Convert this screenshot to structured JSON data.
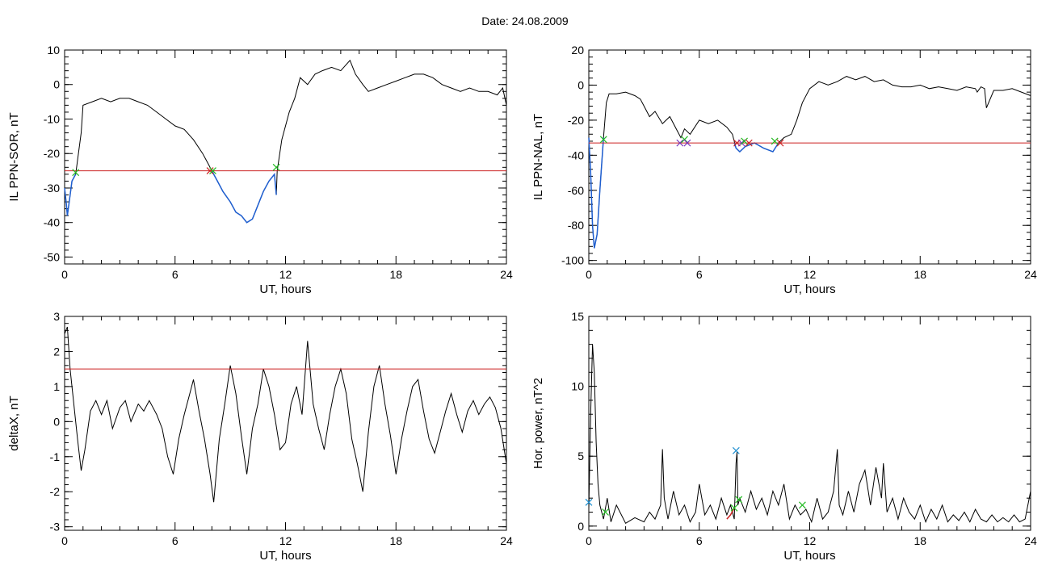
{
  "page_title": "Date:  24.08.2009",
  "chart_data": [
    {
      "type": "line",
      "xlabel": "UT, hours",
      "ylabel": "IL PPN-SOR, nT",
      "xlim": [
        0,
        24
      ],
      "ylim": [
        -52,
        10
      ],
      "xticks": [
        0,
        6,
        12,
        18,
        24
      ],
      "yticks": [
        10,
        0,
        -10,
        -20,
        -30,
        -40,
        -50
      ],
      "threshold": -25,
      "series": [
        {
          "role": "main",
          "color": "#000000",
          "x": [
            0,
            0.1,
            0.15,
            0.25,
            0.4,
            0.6,
            0.75,
            0.9,
            1.0,
            1.5,
            2.0,
            2.5,
            3.0,
            3.5,
            4.0,
            4.5,
            5.0,
            5.5,
            6.0,
            6.5,
            7.0,
            7.5,
            7.8,
            8.0,
            8.3,
            8.6,
            9.0,
            9.3,
            9.6,
            9.9,
            10.2,
            10.5,
            10.8,
            11.1,
            11.4,
            11.5,
            11.55,
            11.8,
            12.2,
            12.5,
            12.8,
            13.2,
            13.6,
            14.0,
            14.5,
            15.0,
            15.5,
            15.8,
            16.2,
            16.5,
            17.0,
            17.5,
            18.0,
            18.5,
            19.0,
            19.5,
            20.0,
            20.5,
            21.0,
            21.5,
            22.0,
            22.5,
            23.0,
            23.5,
            23.8,
            24.0
          ],
          "y": [
            -30,
            -35,
            -38,
            -34,
            -28,
            -26,
            -20,
            -14,
            -6,
            -5,
            -4,
            -5,
            -4,
            -4,
            -5,
            -6,
            -8,
            -10,
            -12,
            -13,
            -16,
            -20,
            -23,
            -25,
            -28,
            -31,
            -34,
            -37,
            -38,
            -40,
            -39,
            -35,
            -31,
            -28,
            -26,
            -32,
            -25,
            -16,
            -8,
            -4,
            2,
            0,
            3,
            4,
            5,
            4,
            7,
            3,
            0,
            -2,
            -1,
            0,
            1,
            2,
            3,
            3,
            2,
            0,
            -1,
            -2,
            -1,
            -2,
            -2,
            -3,
            -1,
            -6
          ]
        },
        {
          "role": "below-threshold",
          "color": "#1f5fd0",
          "x": [
            0,
            0.1,
            0.15,
            0.25,
            0.4,
            0.6
          ],
          "y": [
            -30,
            -35,
            -38,
            -34,
            -28,
            -26
          ]
        },
        {
          "role": "below-threshold",
          "color": "#1f5fd0",
          "x": [
            8.0,
            8.3,
            8.6,
            9.0,
            9.3,
            9.6,
            9.9,
            10.2,
            10.5,
            10.8,
            11.1,
            11.4,
            11.5
          ],
          "y": [
            -25,
            -28,
            -31,
            -34,
            -37,
            -38,
            -40,
            -39,
            -35,
            -31,
            -28,
            -26,
            -32
          ]
        }
      ],
      "markers": [
        {
          "symbol": "x",
          "color": "#22bb22",
          "x": 0.6,
          "y": -25.5
        },
        {
          "symbol": "x",
          "color": "#cc2222",
          "x": 7.9,
          "y": -25
        },
        {
          "symbol": "x",
          "color": "#22bb22",
          "x": 8.05,
          "y": -25
        },
        {
          "symbol": "x",
          "color": "#22bb22",
          "x": 11.5,
          "y": -24
        }
      ]
    },
    {
      "type": "line",
      "xlabel": "UT, hours",
      "ylabel": "IL PPN-NAL, nT",
      "xlim": [
        0,
        24
      ],
      "ylim": [
        -102,
        20
      ],
      "xticks": [
        0,
        6,
        12,
        18,
        24
      ],
      "yticks": [
        20,
        0,
        -20,
        -40,
        -60,
        -80,
        -100
      ],
      "threshold": -33,
      "series": [
        {
          "role": "main",
          "color": "#000000",
          "x": [
            0,
            0.1,
            0.2,
            0.3,
            0.45,
            0.6,
            0.8,
            0.95,
            1.1,
            1.5,
            2.0,
            2.5,
            2.8,
            3.0,
            3.3,
            3.6,
            4.0,
            4.4,
            4.8,
            5.0,
            5.2,
            5.5,
            6.0,
            6.5,
            7.0,
            7.5,
            7.8,
            8.0,
            8.2,
            8.5,
            9.0,
            9.5,
            10.0,
            10.3,
            10.6,
            11.0,
            11.3,
            11.6,
            12.0,
            12.5,
            13.0,
            13.5,
            14.0,
            14.5,
            15.0,
            15.5,
            16.0,
            16.5,
            17.0,
            17.5,
            18.0,
            18.5,
            19.0,
            19.5,
            20.0,
            20.5,
            21.0,
            21.1,
            21.3,
            21.5,
            21.6,
            22.0,
            22.5,
            23.0,
            23.5,
            24.0
          ],
          "y": [
            -30,
            -50,
            -80,
            -93,
            -85,
            -60,
            -30,
            -10,
            -5,
            -5,
            -4,
            -6,
            -8,
            -12,
            -18,
            -15,
            -22,
            -18,
            -26,
            -30,
            -25,
            -28,
            -20,
            -22,
            -20,
            -24,
            -28,
            -36,
            -38,
            -35,
            -33,
            -36,
            -38,
            -33,
            -30,
            -28,
            -20,
            -10,
            -2,
            2,
            0,
            2,
            5,
            3,
            5,
            2,
            3,
            0,
            -1,
            -1,
            0,
            -2,
            -1,
            -2,
            -3,
            -1,
            -2,
            -4,
            -1,
            -2,
            -13,
            -3,
            -3,
            -2,
            -4,
            -6
          ]
        },
        {
          "role": "below-threshold",
          "color": "#1f5fd0",
          "x": [
            0,
            0.1,
            0.2,
            0.3,
            0.45,
            0.6,
            0.8
          ],
          "y": [
            -30,
            -50,
            -80,
            -93,
            -85,
            -60,
            -30
          ]
        },
        {
          "role": "below-threshold",
          "color": "#1f5fd0",
          "x": [
            7.9,
            8.0,
            8.2,
            8.5,
            9.0,
            9.5,
            10.0,
            10.3
          ],
          "y": [
            -33,
            -36,
            -38,
            -35,
            -33,
            -36,
            -38,
            -33
          ]
        }
      ],
      "markers": [
        {
          "symbol": "x",
          "color": "#22bb22",
          "x": 0.8,
          "y": -31
        },
        {
          "symbol": "x",
          "color": "#7733bb",
          "x": 4.95,
          "y": -33
        },
        {
          "symbol": "x",
          "color": "#22bb22",
          "x": 5.2,
          "y": -31
        },
        {
          "symbol": "x",
          "color": "#7733bb",
          "x": 5.35,
          "y": -33
        },
        {
          "symbol": "x",
          "color": "#cc2222",
          "x": 8.05,
          "y": -33
        },
        {
          "symbol": "x",
          "color": "#7733bb",
          "x": 8.3,
          "y": -33
        },
        {
          "symbol": "x",
          "color": "#22bb22",
          "x": 8.45,
          "y": -32
        },
        {
          "symbol": "x",
          "color": "#cc2222",
          "x": 8.7,
          "y": -33
        },
        {
          "symbol": "x",
          "color": "#22bb22",
          "x": 10.1,
          "y": -32
        },
        {
          "symbol": "x",
          "color": "#cc2222",
          "x": 10.4,
          "y": -33
        }
      ]
    },
    {
      "type": "line",
      "xlabel": "UT, hours",
      "ylabel": "deltaX, nT",
      "xlim": [
        0,
        24
      ],
      "ylim": [
        -3.1,
        3
      ],
      "xticks": [
        0,
        6,
        12,
        18,
        24
      ],
      "yticks": [
        3,
        2,
        1,
        0,
        -1,
        -2,
        -3
      ],
      "threshold": 1.5,
      "series": [
        {
          "role": "main",
          "color": "#000000",
          "x": [
            0,
            0.15,
            0.3,
            0.5,
            0.7,
            0.9,
            1.1,
            1.4,
            1.7,
            2.0,
            2.3,
            2.6,
            3.0,
            3.3,
            3.6,
            4.0,
            4.3,
            4.6,
            5.0,
            5.3,
            5.6,
            5.9,
            6.2,
            6.5,
            6.8,
            7.0,
            7.3,
            7.6,
            7.9,
            8.1,
            8.4,
            8.7,
            9.0,
            9.3,
            9.6,
            9.9,
            10.2,
            10.5,
            10.8,
            11.1,
            11.4,
            11.7,
            12.0,
            12.3,
            12.6,
            12.9,
            13.2,
            13.5,
            13.8,
            14.1,
            14.4,
            14.7,
            15.0,
            15.3,
            15.6,
            15.9,
            16.2,
            16.5,
            16.8,
            17.1,
            17.4,
            17.7,
            18.0,
            18.3,
            18.6,
            18.9,
            19.2,
            19.5,
            19.8,
            20.1,
            20.4,
            20.7,
            21.0,
            21.3,
            21.6,
            21.9,
            22.2,
            22.5,
            22.8,
            23.1,
            23.4,
            23.7,
            24.0
          ],
          "y": [
            2.5,
            2.7,
            1.5,
            0.5,
            -0.5,
            -1.4,
            -0.8,
            0.3,
            0.6,
            0.2,
            0.6,
            -0.2,
            0.4,
            0.6,
            0,
            0.5,
            0.3,
            0.6,
            0.2,
            -0.2,
            -1.0,
            -1.5,
            -0.5,
            0.2,
            0.8,
            1.2,
            0.3,
            -0.5,
            -1.5,
            -2.3,
            -0.5,
            0.5,
            1.6,
            0.8,
            -0.4,
            -1.5,
            -0.2,
            0.5,
            1.5,
            1.0,
            0.2,
            -0.8,
            -0.6,
            0.5,
            1.0,
            0.2,
            2.3,
            0.5,
            -0.2,
            -0.8,
            0.2,
            1.0,
            1.5,
            0.8,
            -0.5,
            -1.2,
            -2.0,
            -0.3,
            1.0,
            1.6,
            0.5,
            -0.4,
            -1.5,
            -0.5,
            0.3,
            1.0,
            1.2,
            0.3,
            -0.5,
            -0.9,
            -0.3,
            0.3,
            0.8,
            0.2,
            -0.3,
            0.3,
            0.6,
            0.2,
            0.5,
            0.7,
            0.4,
            -0.2,
            -1.2
          ]
        }
      ],
      "markers": []
    },
    {
      "type": "line",
      "xlabel": "UT, hours",
      "ylabel": "Hor. power, nT^2",
      "xlim": [
        0,
        24
      ],
      "ylim": [
        -0.3,
        15
      ],
      "xticks": [
        0,
        6,
        12,
        18,
        24
      ],
      "yticks": [
        15,
        10,
        5,
        0
      ],
      "threshold": null,
      "series": [
        {
          "role": "main",
          "color": "#000000",
          "x": [
            0,
            0.1,
            0.2,
            0.3,
            0.4,
            0.5,
            0.6,
            0.8,
            1.0,
            1.2,
            1.5,
            2.0,
            2.5,
            3.0,
            3.3,
            3.6,
            3.9,
            4.0,
            4.1,
            4.3,
            4.6,
            4.9,
            5.2,
            5.5,
            5.8,
            6.0,
            6.3,
            6.6,
            6.9,
            7.2,
            7.5,
            7.7,
            7.9,
            8.0,
            8.05,
            8.1,
            8.2,
            8.5,
            8.8,
            9.1,
            9.4,
            9.7,
            10.0,
            10.3,
            10.6,
            10.9,
            11.2,
            11.5,
            11.8,
            12.1,
            12.4,
            12.7,
            13.0,
            13.3,
            13.5,
            13.6,
            13.8,
            14.1,
            14.4,
            14.7,
            15.0,
            15.3,
            15.6,
            15.9,
            16.0,
            16.2,
            16.5,
            16.8,
            17.1,
            17.4,
            17.7,
            18.0,
            18.3,
            18.6,
            18.9,
            19.2,
            19.5,
            19.8,
            20.1,
            20.4,
            20.7,
            21.0,
            21.3,
            21.6,
            21.9,
            22.2,
            22.5,
            22.8,
            23.1,
            23.4,
            23.7,
            24.0
          ],
          "y": [
            1.2,
            8,
            13,
            11,
            6,
            3,
            1.5,
            0.5,
            2.0,
            0.3,
            1.5,
            0.2,
            0.6,
            0.3,
            1.0,
            0.5,
            1.5,
            5.5,
            2.0,
            0.5,
            2.5,
            0.8,
            1.5,
            0.3,
            1.0,
            3.0,
            0.8,
            1.5,
            0.5,
            2.0,
            0.8,
            1.5,
            0.5,
            4.5,
            5.3,
            1.5,
            2.0,
            1.0,
            2.5,
            1.2,
            2.0,
            0.8,
            2.5,
            1.5,
            3.0,
            0.5,
            1.5,
            0.8,
            1.2,
            0.3,
            2.0,
            0.5,
            1.0,
            2.5,
            5.5,
            1.5,
            0.8,
            2.5,
            1.0,
            3.0,
            4.0,
            1.5,
            4.2,
            2.0,
            4.5,
            1.0,
            2.0,
            0.5,
            2.0,
            1.0,
            0.5,
            1.5,
            0.3,
            1.2,
            0.5,
            1.5,
            0.3,
            0.8,
            0.4,
            1.0,
            0.3,
            1.2,
            0.5,
            0.3,
            0.8,
            0.3,
            0.6,
            0.3,
            0.8,
            0.3,
            0.5,
            2.5
          ]
        },
        {
          "role": "highlight",
          "color": "#cc2222",
          "x": [
            7.5,
            7.7,
            7.9
          ],
          "y": [
            0.5,
            0.8,
            1.3
          ]
        }
      ],
      "markers": [
        {
          "symbol": "x",
          "color": "#1f8fd0",
          "x": 0.0,
          "y": 1.7
        },
        {
          "symbol": "x",
          "color": "#22bb22",
          "x": 0.9,
          "y": 1.0
        },
        {
          "symbol": "x",
          "color": "#22bb22",
          "x": 7.9,
          "y": 1.3
        },
        {
          "symbol": "x",
          "color": "#1f8fd0",
          "x": 8.0,
          "y": 5.4
        },
        {
          "symbol": "x",
          "color": "#22bb22",
          "x": 8.15,
          "y": 1.9
        },
        {
          "symbol": "x",
          "color": "#22bb22",
          "x": 11.6,
          "y": 1.5
        }
      ]
    }
  ]
}
